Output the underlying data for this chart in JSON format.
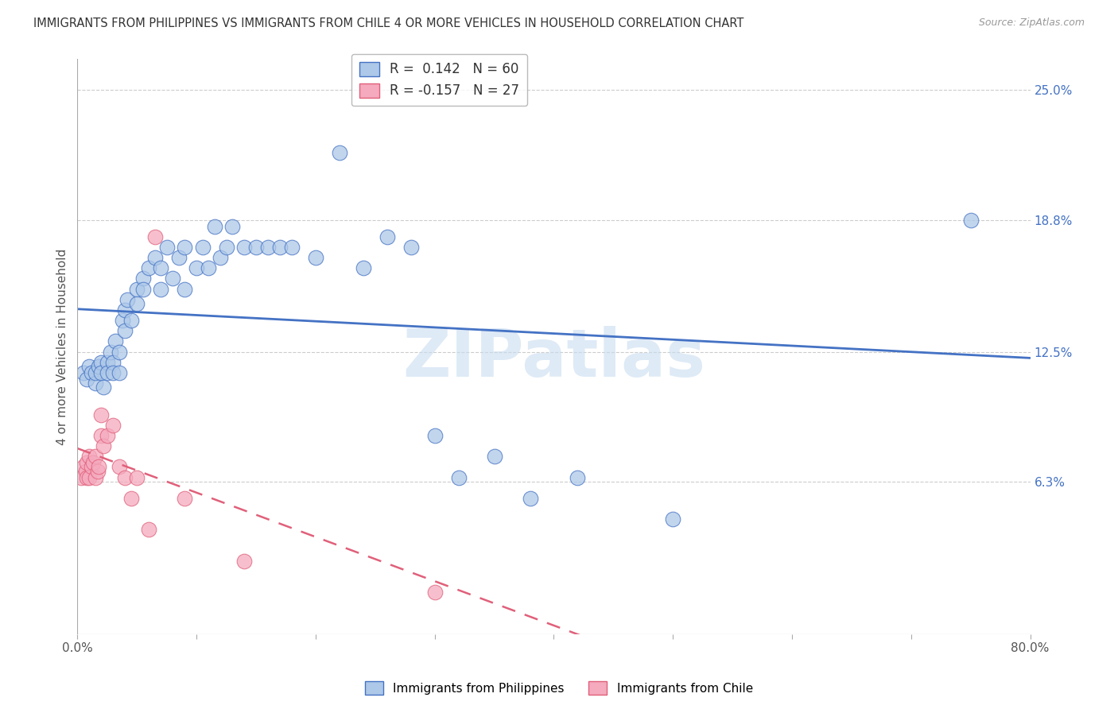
{
  "title": "IMMIGRANTS FROM PHILIPPINES VS IMMIGRANTS FROM CHILE 4 OR MORE VEHICLES IN HOUSEHOLD CORRELATION CHART",
  "source": "Source: ZipAtlas.com",
  "ylabel": "4 or more Vehicles in Household",
  "xlim": [
    0.0,
    0.8
  ],
  "ylim": [
    -0.01,
    0.265
  ],
  "xticks": [
    0.0,
    0.1,
    0.2,
    0.3,
    0.4,
    0.5,
    0.6,
    0.7,
    0.8
  ],
  "xticklabels": [
    "0.0%",
    "",
    "",
    "",
    "",
    "",
    "",
    "",
    "80.0%"
  ],
  "yticks_right": [
    0.063,
    0.125,
    0.188,
    0.25
  ],
  "ytick_right_labels": [
    "6.3%",
    "12.5%",
    "18.8%",
    "25.0%"
  ],
  "watermark": "ZIPatlas",
  "phil_R": 0.142,
  "phil_N": 60,
  "chile_R": -0.157,
  "chile_N": 27,
  "phil_color": "#adc8e8",
  "chile_color": "#f5aabe",
  "phil_line_color": "#4472c4",
  "chile_line_color": "#e0607a",
  "background_color": "#ffffff",
  "grid_color": "#cccccc",
  "phil_x": [
    0.005,
    0.008,
    0.01,
    0.012,
    0.015,
    0.015,
    0.018,
    0.02,
    0.02,
    0.022,
    0.025,
    0.025,
    0.028,
    0.03,
    0.03,
    0.032,
    0.035,
    0.035,
    0.038,
    0.04,
    0.04,
    0.042,
    0.045,
    0.05,
    0.05,
    0.055,
    0.055,
    0.06,
    0.065,
    0.07,
    0.07,
    0.075,
    0.08,
    0.085,
    0.09,
    0.09,
    0.1,
    0.105,
    0.11,
    0.115,
    0.12,
    0.125,
    0.13,
    0.14,
    0.15,
    0.16,
    0.17,
    0.18,
    0.2,
    0.22,
    0.24,
    0.26,
    0.28,
    0.3,
    0.32,
    0.35,
    0.38,
    0.42,
    0.5,
    0.75
  ],
  "phil_y": [
    0.115,
    0.112,
    0.118,
    0.115,
    0.11,
    0.115,
    0.118,
    0.12,
    0.115,
    0.108,
    0.12,
    0.115,
    0.125,
    0.12,
    0.115,
    0.13,
    0.115,
    0.125,
    0.14,
    0.135,
    0.145,
    0.15,
    0.14,
    0.155,
    0.148,
    0.16,
    0.155,
    0.165,
    0.17,
    0.155,
    0.165,
    0.175,
    0.16,
    0.17,
    0.155,
    0.175,
    0.165,
    0.175,
    0.165,
    0.185,
    0.17,
    0.175,
    0.185,
    0.175,
    0.175,
    0.175,
    0.175,
    0.175,
    0.17,
    0.22,
    0.165,
    0.18,
    0.175,
    0.085,
    0.065,
    0.075,
    0.055,
    0.065,
    0.045,
    0.188
  ],
  "chile_x": [
    0.003,
    0.005,
    0.007,
    0.008,
    0.008,
    0.01,
    0.01,
    0.012,
    0.013,
    0.015,
    0.015,
    0.017,
    0.018,
    0.02,
    0.02,
    0.022,
    0.025,
    0.03,
    0.035,
    0.04,
    0.045,
    0.05,
    0.06,
    0.065,
    0.09,
    0.14,
    0.3
  ],
  "chile_y": [
    0.065,
    0.07,
    0.068,
    0.072,
    0.065,
    0.075,
    0.065,
    0.07,
    0.072,
    0.075,
    0.065,
    0.068,
    0.07,
    0.095,
    0.085,
    0.08,
    0.085,
    0.09,
    0.07,
    0.065,
    0.055,
    0.065,
    0.04,
    0.18,
    0.055,
    0.025,
    0.01
  ]
}
